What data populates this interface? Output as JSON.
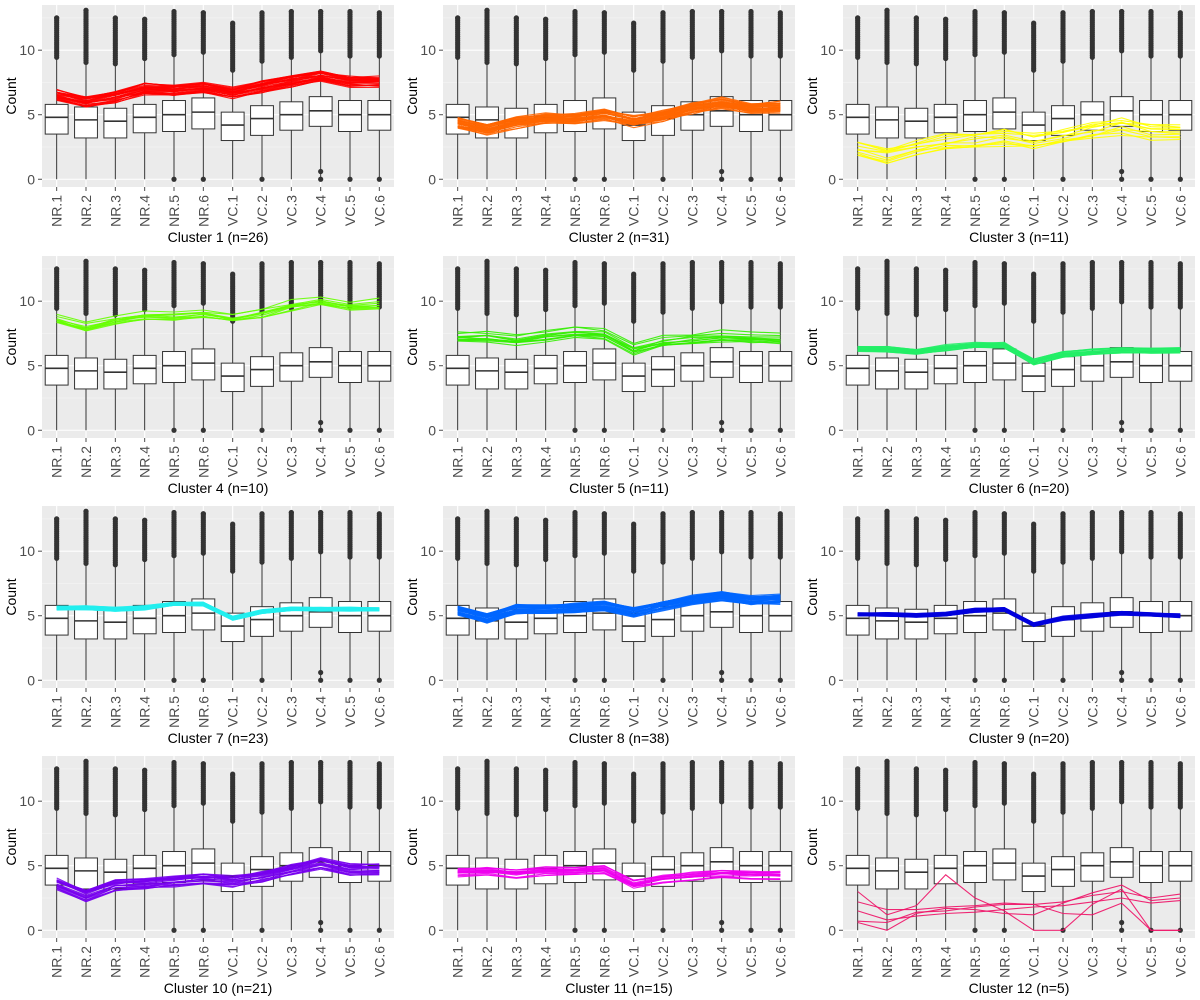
{
  "figure": {
    "background": "#ffffff",
    "panel_background": "#ebebeb"
  },
  "chart_data": [
    {
      "type": "line",
      "title": "",
      "xlabel": "Cluster 1 (n=26)",
      "ylabel": "Count",
      "ylim": [
        -0.6,
        13.5
      ],
      "yticks": [
        0,
        5,
        10
      ],
      "categories": [
        "NR.1",
        "NR.2",
        "NR.3",
        "NR.4",
        "NR.5",
        "NR.6",
        "VC.1",
        "VC.2",
        "VC.3",
        "VC.4",
        "VC.5",
        "VC.6"
      ],
      "n_lines": 26,
      "color": "#ff0000",
      "profile_mean": [
        6.5,
        6.0,
        6.4,
        7.0,
        6.9,
        7.1,
        6.7,
        7.2,
        7.6,
        8.0,
        7.6,
        7.6
      ],
      "profile_spread": 0.4
    },
    {
      "type": "line",
      "title": "",
      "xlabel": "Cluster 2 (n=31)",
      "ylabel": "Count",
      "ylim": [
        -0.6,
        13.5
      ],
      "yticks": [
        0,
        5,
        10
      ],
      "categories": [
        "NR.1",
        "NR.2",
        "NR.3",
        "NR.4",
        "NR.5",
        "NR.6",
        "VC.1",
        "VC.2",
        "VC.3",
        "VC.4",
        "VC.5",
        "VC.6"
      ],
      "n_lines": 31,
      "color": "#ff6600",
      "profile_mean": [
        4.4,
        3.9,
        4.4,
        4.7,
        4.7,
        5.0,
        4.5,
        4.9,
        5.5,
        5.9,
        5.5,
        5.6
      ],
      "profile_spread": 0.4
    },
    {
      "type": "line",
      "title": "",
      "xlabel": "Cluster 3 (n=11)",
      "ylabel": "Count",
      "ylim": [
        -0.6,
        13.5
      ],
      "yticks": [
        0,
        5,
        10
      ],
      "categories": [
        "NR.1",
        "NR.2",
        "NR.3",
        "NR.4",
        "NR.5",
        "NR.6",
        "VC.1",
        "VC.2",
        "VC.3",
        "VC.4",
        "VC.5",
        "VC.6"
      ],
      "n_lines": 11,
      "color": "#ffff00",
      "profile_mean": [
        2.3,
        1.8,
        2.4,
        2.8,
        3.0,
        3.2,
        2.9,
        3.3,
        3.7,
        4.1,
        3.6,
        3.6
      ],
      "profile_spread": 0.7
    },
    {
      "type": "line",
      "title": "",
      "xlabel": "Cluster 4 (n=10)",
      "ylabel": "Count",
      "ylim": [
        -0.6,
        13.5
      ],
      "yticks": [
        0,
        5,
        10
      ],
      "categories": [
        "NR.1",
        "NR.2",
        "NR.3",
        "NR.4",
        "NR.5",
        "NR.6",
        "VC.1",
        "VC.2",
        "VC.3",
        "VC.4",
        "VC.5",
        "VC.6"
      ],
      "n_lines": 10,
      "color": "#66ff00",
      "profile_mean": [
        8.6,
        7.9,
        8.5,
        8.8,
        8.8,
        9.0,
        8.6,
        9.0,
        9.6,
        10.0,
        9.6,
        9.7
      ],
      "profile_spread": 0.5
    },
    {
      "type": "line",
      "title": "",
      "xlabel": "Cluster 5 (n=11)",
      "ylabel": "Count",
      "ylim": [
        -0.6,
        13.5
      ],
      "yticks": [
        0,
        5,
        10
      ],
      "categories": [
        "NR.1",
        "NR.2",
        "NR.3",
        "NR.4",
        "NR.5",
        "NR.6",
        "VC.1",
        "VC.2",
        "VC.3",
        "VC.4",
        "VC.5",
        "VC.6"
      ],
      "n_lines": 11,
      "color": "#33ee00",
      "profile_mean": [
        7.2,
        7.3,
        7.0,
        7.3,
        7.6,
        7.5,
        6.3,
        6.9,
        7.1,
        7.3,
        7.2,
        7.1
      ],
      "profile_spread": 0.4
    },
    {
      "type": "line",
      "title": "",
      "xlabel": "Cluster 6 (n=20)",
      "ylabel": "Count",
      "ylim": [
        -0.6,
        13.5
      ],
      "yticks": [
        0,
        5,
        10
      ],
      "categories": [
        "NR.1",
        "NR.2",
        "NR.3",
        "NR.4",
        "NR.5",
        "NR.6",
        "VC.1",
        "VC.2",
        "VC.3",
        "VC.4",
        "VC.5",
        "VC.6"
      ],
      "n_lines": 20,
      "color": "#22ee66",
      "profile_mean": [
        6.3,
        6.3,
        6.1,
        6.4,
        6.6,
        6.6,
        5.3,
        5.9,
        6.1,
        6.2,
        6.2,
        6.2
      ],
      "profile_spread": 0.2
    },
    {
      "type": "line",
      "title": "",
      "xlabel": "Cluster 7 (n=23)",
      "ylabel": "Count",
      "ylim": [
        -0.6,
        13.5
      ],
      "yticks": [
        0,
        5,
        10
      ],
      "categories": [
        "NR.1",
        "NR.2",
        "NR.3",
        "NR.4",
        "NR.5",
        "NR.6",
        "VC.1",
        "VC.2",
        "VC.3",
        "VC.4",
        "VC.5",
        "VC.6"
      ],
      "n_lines": 23,
      "color": "#22eeee",
      "profile_mean": [
        5.6,
        5.6,
        5.5,
        5.6,
        5.9,
        5.9,
        4.8,
        5.3,
        5.5,
        5.5,
        5.5,
        5.5
      ],
      "profile_spread": 0.15
    },
    {
      "type": "line",
      "title": "",
      "xlabel": "Cluster 8 (n=38)",
      "ylabel": "Count",
      "ylim": [
        -0.6,
        13.5
      ],
      "yticks": [
        0,
        5,
        10
      ],
      "categories": [
        "NR.1",
        "NR.2",
        "NR.3",
        "NR.4",
        "NR.5",
        "NR.6",
        "VC.1",
        "VC.2",
        "VC.3",
        "VC.4",
        "VC.5",
        "VC.6"
      ],
      "n_lines": 38,
      "color": "#0066ff",
      "profile_mean": [
        5.4,
        4.8,
        5.5,
        5.5,
        5.6,
        5.8,
        5.3,
        5.8,
        6.2,
        6.5,
        6.2,
        6.3
      ],
      "profile_spread": 0.35
    },
    {
      "type": "line",
      "title": "",
      "xlabel": "Cluster 9 (n=20)",
      "ylabel": "Count",
      "ylim": [
        -0.6,
        13.5
      ],
      "yticks": [
        0,
        5,
        10
      ],
      "categories": [
        "NR.1",
        "NR.2",
        "NR.3",
        "NR.4",
        "NR.5",
        "NR.6",
        "VC.1",
        "VC.2",
        "VC.3",
        "VC.4",
        "VC.5",
        "VC.6"
      ],
      "n_lines": 20,
      "color": "#0000dd",
      "profile_mean": [
        5.1,
        5.1,
        5.0,
        5.1,
        5.4,
        5.5,
        4.3,
        4.8,
        5.0,
        5.2,
        5.1,
        5.0
      ],
      "profile_spread": 0.15
    },
    {
      "type": "line",
      "title": "",
      "xlabel": "Cluster 10 (n=21)",
      "ylabel": "Count",
      "ylim": [
        -0.6,
        13.5
      ],
      "yticks": [
        0,
        5,
        10
      ],
      "categories": [
        "NR.1",
        "NR.2",
        "NR.3",
        "NR.4",
        "NR.5",
        "NR.6",
        "VC.1",
        "VC.2",
        "VC.3",
        "VC.4",
        "VC.5",
        "VC.6"
      ],
      "n_lines": 21,
      "color": "#7700ee",
      "profile_mean": [
        3.6,
        2.7,
        3.5,
        3.6,
        3.8,
        4.0,
        3.8,
        4.2,
        4.7,
        5.2,
        4.7,
        4.7
      ],
      "profile_spread": 0.4
    },
    {
      "type": "line",
      "title": "",
      "xlabel": "Cluster 11 (n=15)",
      "ylabel": "Count",
      "ylim": [
        -0.6,
        13.5
      ],
      "yticks": [
        0,
        5,
        10
      ],
      "categories": [
        "NR.1",
        "NR.2",
        "NR.3",
        "NR.4",
        "NR.5",
        "NR.6",
        "VC.1",
        "VC.2",
        "VC.3",
        "VC.4",
        "VC.5",
        "VC.6"
      ],
      "n_lines": 15,
      "color": "#ee00ee",
      "profile_mean": [
        4.5,
        4.6,
        4.4,
        4.6,
        4.6,
        4.7,
        3.6,
        4.0,
        4.2,
        4.4,
        4.3,
        4.3
      ],
      "profile_spread": 0.3
    },
    {
      "type": "line",
      "title": "",
      "xlabel": "Cluster 12 (n=5)",
      "ylabel": "Count",
      "ylim": [
        -0.6,
        13.5
      ],
      "yticks": [
        0,
        5,
        10
      ],
      "categories": [
        "NR.1",
        "NR.2",
        "NR.3",
        "NR.4",
        "NR.5",
        "NR.6",
        "VC.1",
        "VC.2",
        "VC.3",
        "VC.4",
        "VC.5",
        "VC.6"
      ],
      "n_lines": 5,
      "color": "#ee1166",
      "lines": [
        [
          3.0,
          1.2,
          1.9,
          4.3,
          2.5,
          1.5,
          0.0,
          0.0,
          2.0,
          3.2,
          0.0,
          0.0
        ],
        [
          0.7,
          0.6,
          1.4,
          1.5,
          1.8,
          2.0,
          2.0,
          2.2,
          2.7,
          3.0,
          2.5,
          2.8
        ],
        [
          0.6,
          0.0,
          1.3,
          1.7,
          1.6,
          1.3,
          1.2,
          2.1,
          2.9,
          3.5,
          2.3,
          2.5
        ],
        [
          2.2,
          1.6,
          1.6,
          1.8,
          1.9,
          2.1,
          2.0,
          1.3,
          1.2,
          2.1,
          0.0,
          0.0
        ],
        [
          1.5,
          0.8,
          1.1,
          1.3,
          1.4,
          1.6,
          1.8,
          1.9,
          2.2,
          2.5,
          2.1,
          2.3
        ]
      ]
    }
  ],
  "boxplot": {
    "samples": [
      "NR.1",
      "NR.2",
      "NR.3",
      "NR.4",
      "NR.5",
      "NR.6",
      "VC.1",
      "VC.2",
      "VC.3",
      "VC.4",
      "VC.5",
      "VC.6"
    ],
    "q1": [
      3.5,
      3.2,
      3.2,
      3.6,
      3.7,
      3.9,
      3.0,
      3.4,
      3.8,
      4.1,
      3.7,
      3.8
    ],
    "median": [
      4.8,
      4.6,
      4.5,
      4.8,
      5.0,
      5.2,
      4.2,
      4.7,
      5.0,
      5.3,
      5.0,
      5.0
    ],
    "q3": [
      5.8,
      5.6,
      5.5,
      5.8,
      6.1,
      6.3,
      5.2,
      5.7,
      6.0,
      6.4,
      6.1,
      6.1
    ],
    "whisker_low": [
      0,
      0,
      0,
      0,
      0,
      0,
      0,
      0,
      0,
      0,
      0,
      0
    ],
    "whisker_high": [
      9.3,
      8.9,
      8.8,
      9.2,
      9.5,
      9.7,
      8.3,
      9.0,
      9.3,
      9.8,
      9.4,
      9.4
    ],
    "outlier_max": [
      12.5,
      13.1,
      12.5,
      12.4,
      13.0,
      12.9,
      12.1,
      12.9,
      13.0,
      13.0,
      13.0,
      12.9
    ],
    "low_outliers": [
      [],
      [],
      [],
      [],
      [
        0
      ],
      [
        0
      ],
      [],
      [
        0
      ],
      [],
      [
        0.6,
        0
      ],
      [
        0
      ],
      [
        0
      ]
    ]
  }
}
